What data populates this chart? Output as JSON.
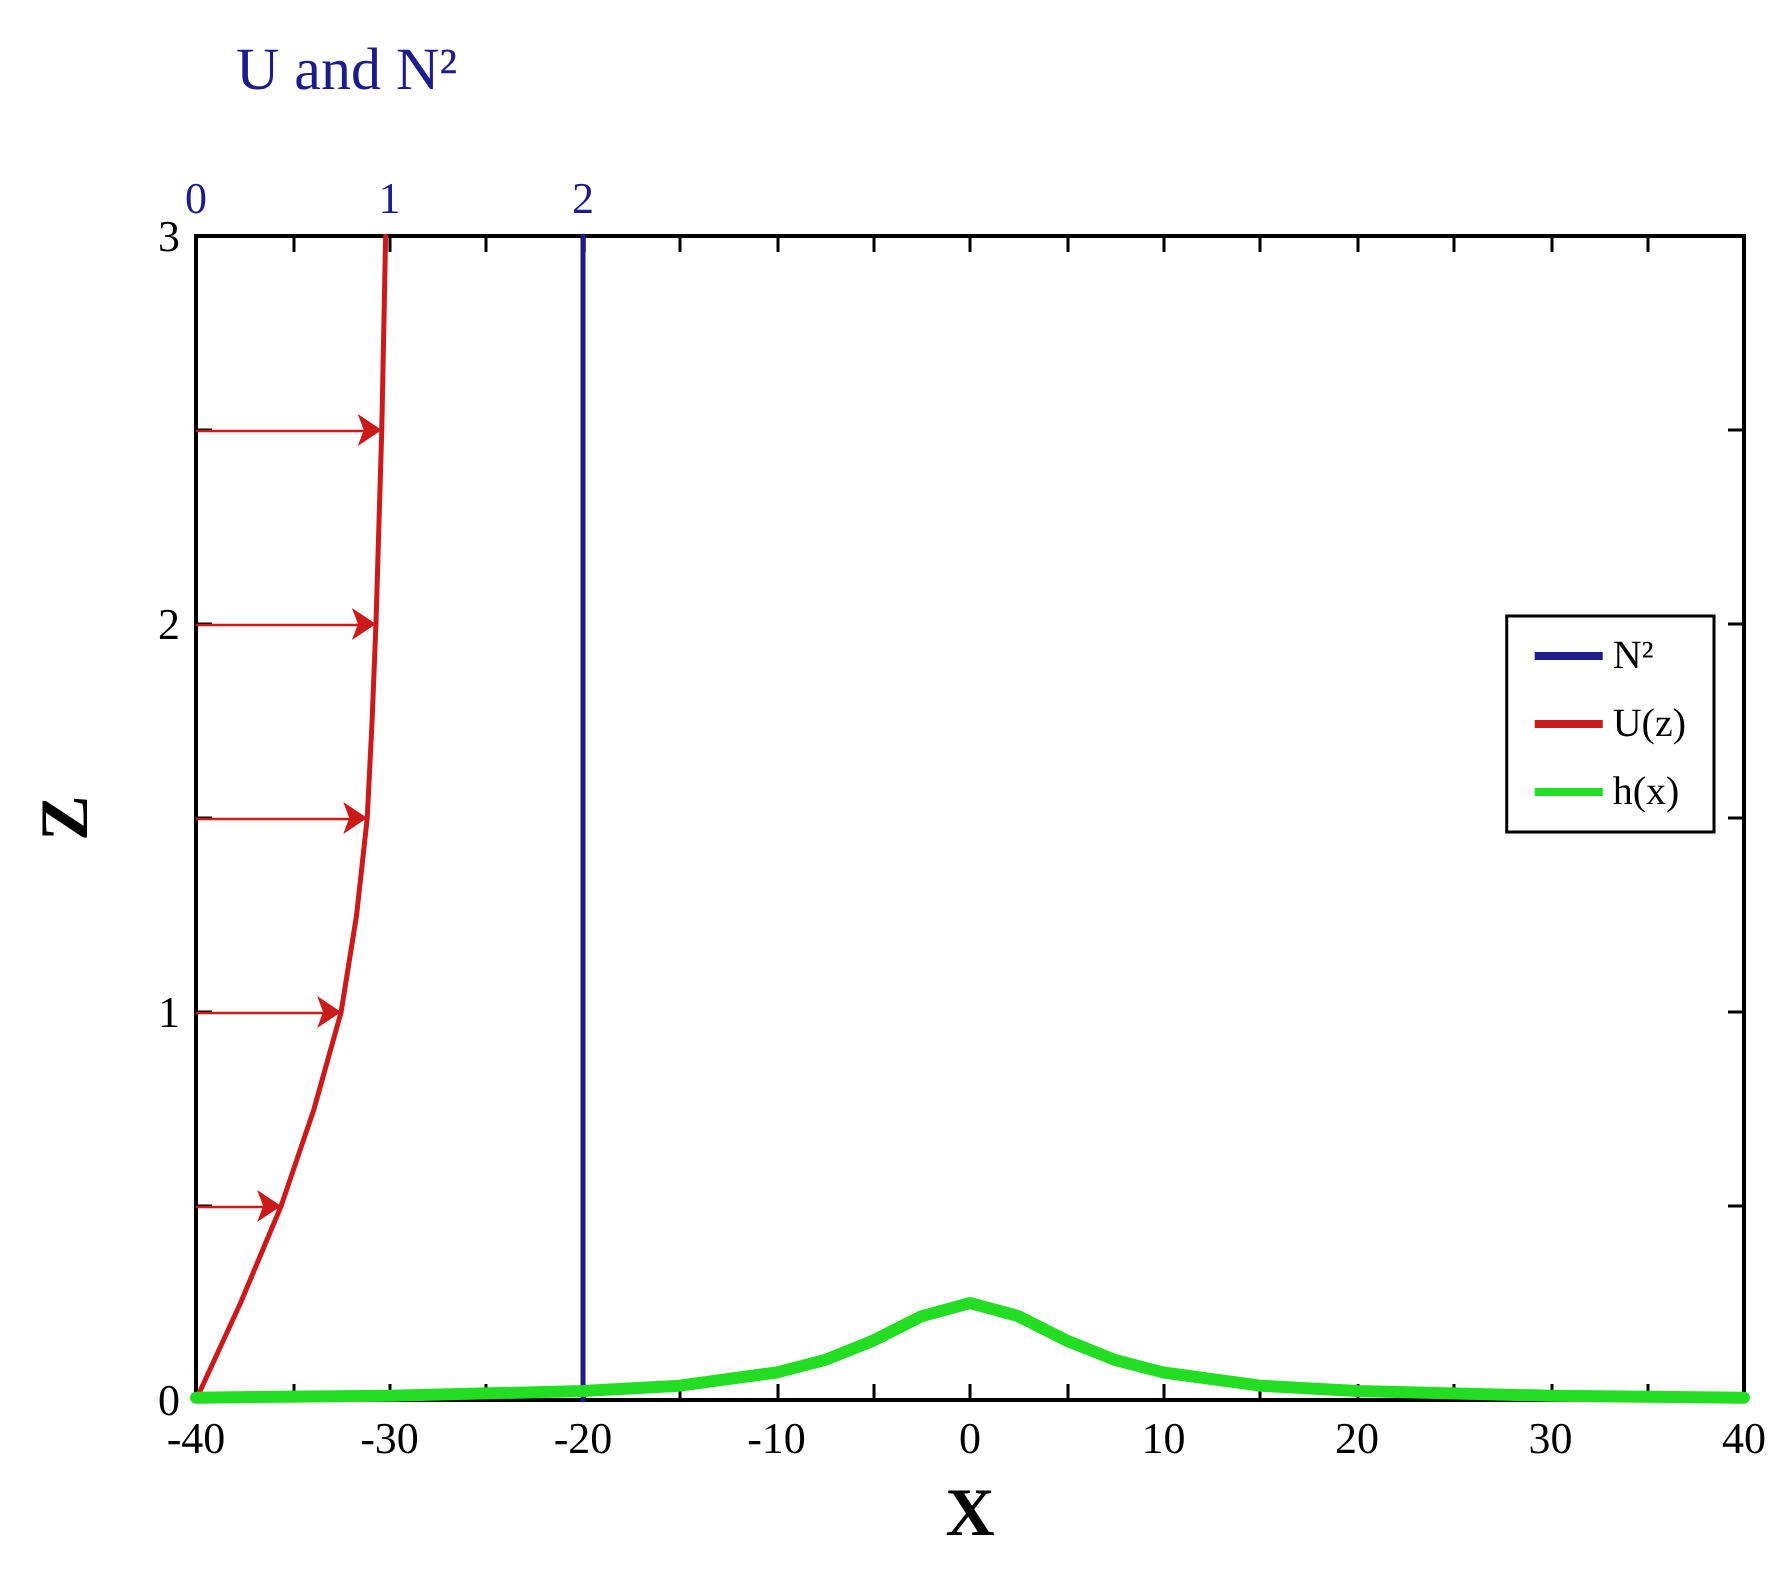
{
  "chart_data": {
    "type": "line",
    "xlabel": "X",
    "ylabel": "Z",
    "x2label": "U and N²",
    "xlim": [
      -40,
      40
    ],
    "xticks": [
      -40,
      {
        "value": -35,
        "label": null
      },
      -30,
      {
        "value": -25,
        "label": null
      },
      -20,
      {
        "value": -15,
        "label": null
      },
      -10,
      {
        "value": -5,
        "label": null
      },
      0,
      {
        "value": 5,
        "label": null
      },
      10,
      {
        "value": 15,
        "label": null
      },
      20,
      {
        "value": 25,
        "label": null
      },
      30,
      {
        "value": 35,
        "label": null
      },
      40
    ],
    "x2lim": [
      0,
      8
    ],
    "x2ticks": [
      0,
      {
        "value": 0.5,
        "label": null
      },
      1,
      {
        "value": 1.5,
        "label": null
      },
      2,
      {
        "value": 2.5,
        "label": null
      },
      {
        "value": 3,
        "label": null
      },
      {
        "value": 3.5,
        "label": null
      },
      {
        "value": 4,
        "label": null
      },
      {
        "value": 4.5,
        "label": null
      },
      {
        "value": 5,
        "label": null
      },
      {
        "value": 5.5,
        "label": null
      },
      {
        "value": 6,
        "label": null
      },
      {
        "value": 6.5,
        "label": null
      },
      {
        "value": 7,
        "label": null
      },
      {
        "value": 7.5,
        "label": null
      },
      {
        "value": 8,
        "label": null
      }
    ],
    "ylim": [
      0,
      3
    ],
    "yticks": [
      0,
      {
        "value": 0.5,
        "label": null
      },
      1,
      {
        "value": 1.5,
        "label": null
      },
      2,
      {
        "value": 2.5,
        "label": null
      },
      3
    ],
    "grid": false,
    "legend": "right",
    "marker": "none",
    "line_style": "solid",
    "series": [
      {
        "name": "N²",
        "color": "#1c1c8a",
        "axis": "x2",
        "x": [
          2,
          2
        ],
        "values": [
          0,
          3
        ]
      },
      {
        "name": "U(z)",
        "color": "#cc1a1a",
        "axis": "x2",
        "x": [
          0,
          0.23,
          0.44,
          0.61,
          0.75,
          0.83,
          0.885,
          0.91,
          0.93,
          0.945,
          0.96,
          0.97,
          0.98
        ],
        "values": [
          0,
          0.25,
          0.5,
          0.75,
          1,
          1.25,
          1.5,
          1.75,
          2,
          2.25,
          2.5,
          2.75,
          3
        ]
      },
      {
        "name": "h(x)",
        "color": "#22dd22",
        "x": [
          -40,
          -30,
          -20,
          -15,
          -10,
          -7.5,
          -5,
          -2.5,
          0,
          2.5,
          5,
          7.5,
          10,
          15,
          20,
          30,
          40
        ],
        "values": [
          0.006,
          0.011,
          0.023,
          0.037,
          0.071,
          0.103,
          0.153,
          0.216,
          0.25,
          0.216,
          0.153,
          0.103,
          0.071,
          0.037,
          0.023,
          0.011,
          0.006
        ]
      }
    ]
  }
}
